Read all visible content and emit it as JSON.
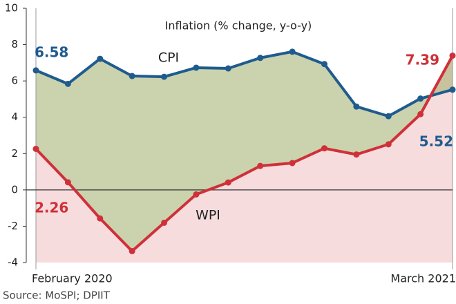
{
  "chart_data": {
    "type": "line",
    "title": "Inflation (% change, y-o-y)",
    "source": "Source: MoSPI; DPIIT",
    "categories": [
      "February 2020",
      null,
      null,
      null,
      null,
      null,
      null,
      null,
      null,
      null,
      null,
      null,
      null,
      "March 2021"
    ],
    "series": [
      {
        "name": "CPI",
        "color": "#1f5b8e",
        "values": [
          6.58,
          5.84,
          7.22,
          6.27,
          6.23,
          6.73,
          6.69,
          7.27,
          7.61,
          6.93,
          4.59,
          4.06,
          5.03,
          5.52
        ]
      },
      {
        "name": "WPI",
        "color": "#cf3039",
        "values": [
          2.26,
          0.42,
          -1.57,
          -3.37,
          -1.81,
          -0.25,
          0.41,
          1.32,
          1.48,
          2.29,
          1.95,
          2.51,
          4.17,
          7.39
        ]
      }
    ],
    "ylim": [
      -4,
      10
    ],
    "yticks": [
      -4,
      -2,
      0,
      2,
      4,
      6,
      8,
      10
    ],
    "grid": false
  }
}
